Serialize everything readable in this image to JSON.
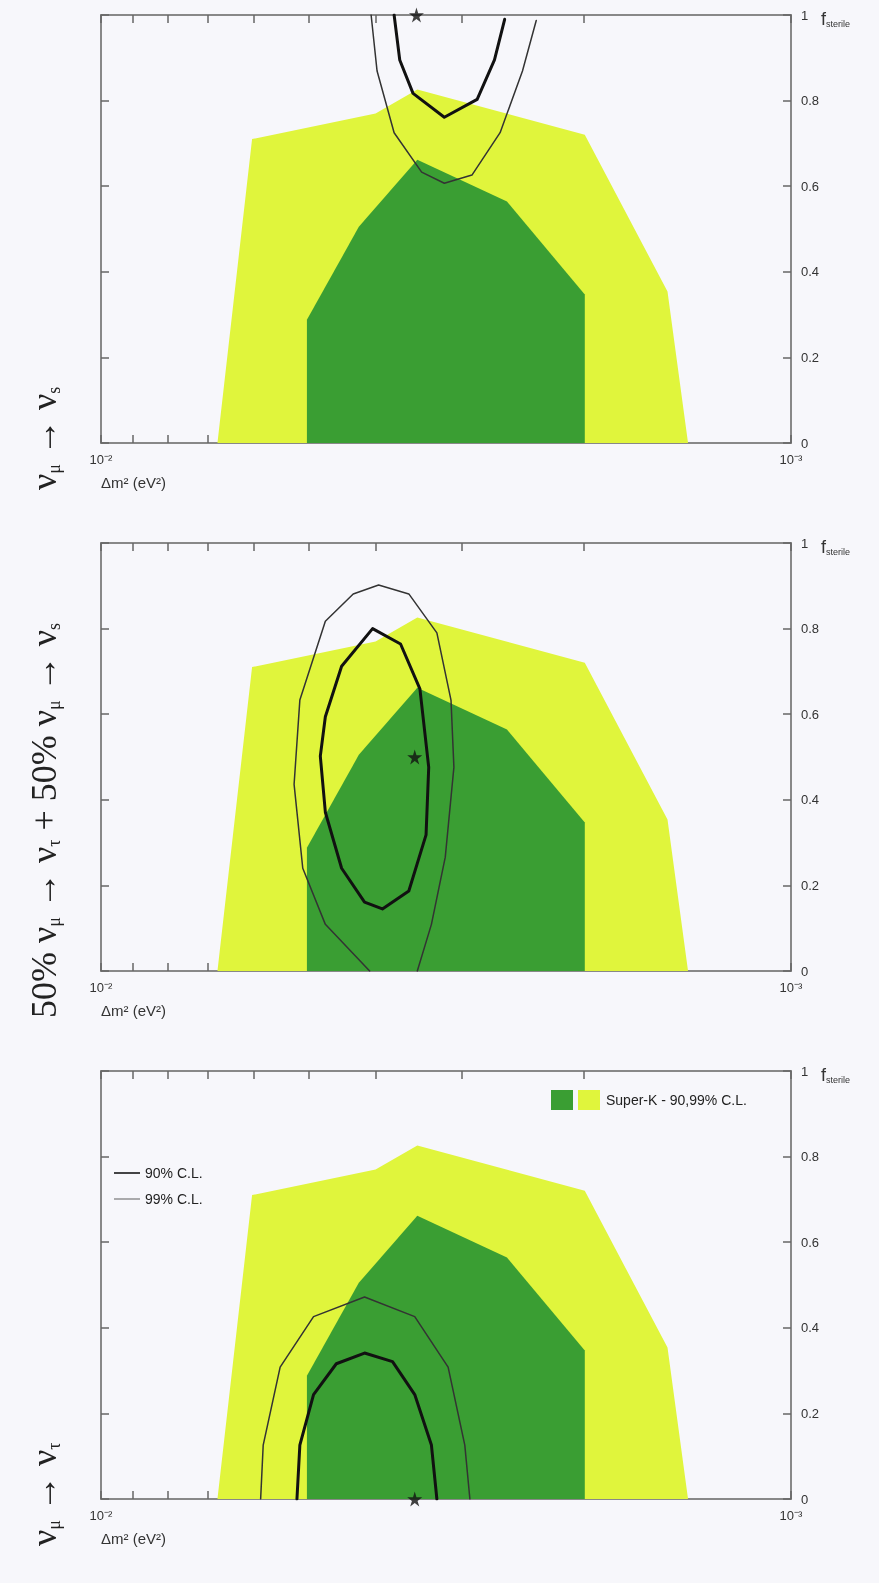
{
  "chart_data": [
    {
      "type": "line",
      "title": "ν$_{μ}$ → ν$_{τ}$",
      "xlabel": "Δm² (eV²)",
      "ylabel": "f$_{sterile}$",
      "xlim": [
        0.01,
        0.001
      ],
      "xticks": [
        {
          "value": 0.01,
          "label": "10⁻²"
        },
        {
          "value": 0.009,
          "label": null
        },
        {
          "value": 0.008,
          "label": null
        },
        {
          "value": 0.007,
          "label": null
        },
        {
          "value": 0.006,
          "label": null
        },
        {
          "value": 0.005,
          "label": null
        },
        {
          "value": 0.004,
          "label": null
        },
        {
          "value": 0.003,
          "label": null
        },
        {
          "value": 0.002,
          "label": null
        },
        {
          "value": 0.001,
          "label": "10⁻³"
        }
      ],
      "ylim": [
        0,
        1
      ],
      "yticks": [
        0,
        0.2,
        0.4,
        0.6,
        0.8,
        1
      ],
      "log": "x",
      "grid": false,
      "legend": "top left",
      "marker": "none",
      "series": [
        {
          "type": "area",
          "name": "Super-K - 90,99% C.L.",
          "color": "#e0f53c",
          "x": [
            0.00678,
            0.00604,
            0.004,
            0.00348,
            0.00199,
            0.00151,
            0.00141
          ],
          "values": [
            0,
            0.71,
            0.77,
            0.826,
            0.72,
            0.354,
            0
          ]
        },
        {
          "type": "area",
          "color": "#3a9e33",
          "x": [
            0.00503,
            0.00503,
            0.00423,
            0.00348,
            0.00258,
            0.00199,
            0.00199
          ],
          "values": [
            0.035,
            0.288,
            0.505,
            0.662,
            0.564,
            0.347,
            0
          ]
        },
        {
          "name": "90% C.L.",
          "color": "#111111",
          "line_style": "solid",
          "x": [
            0.0052,
            0.00515,
            0.00492,
            0.00456,
            0.00415,
            0.00378,
            0.00351,
            0.00332,
            0.00326
          ],
          "values": [
            0,
            0.126,
            0.244,
            0.316,
            0.341,
            0.321,
            0.244,
            0.126,
            0
          ]
        },
        {
          "name": "99% C.L.",
          "color": "#333333",
          "line_style": "solid",
          "x": [
            0.00587,
            0.00582,
            0.0055,
            0.00492,
            0.00415,
            0.00351,
            0.00314,
            0.00297,
            0.00292
          ],
          "values": [
            0,
            0.126,
            0.308,
            0.426,
            0.472,
            0.426,
            0.308,
            0.126,
            0
          ]
        },
        {
          "type": "scatter",
          "color": "#111111",
          "marker": "star",
          "x": [
            0.00351
          ],
          "values": [
            0
          ]
        }
      ]
    },
    {
      "type": "line",
      "title": "50% ν$_{μ}$ → ν$_{τ}$ + 50% ν$_{μ}$ → ν$_{s}$",
      "xlabel": "Δm² (eV²)",
      "ylabel": "f$_{sterile}$",
      "xlim": [
        0.01,
        0.001
      ],
      "xticks": [
        {
          "value": 0.01,
          "label": "10⁻²"
        },
        {
          "value": 0.009,
          "label": null
        },
        {
          "value": 0.008,
          "label": null
        },
        {
          "value": 0.007,
          "label": null
        },
        {
          "value": 0.006,
          "label": null
        },
        {
          "value": 0.005,
          "label": null
        },
        {
          "value": 0.004,
          "label": null
        },
        {
          "value": 0.003,
          "label": null
        },
        {
          "value": 0.002,
          "label": null
        },
        {
          "value": 0.001,
          "label": "10⁻³"
        }
      ],
      "ylim": [
        0,
        1
      ],
      "yticks": [
        0,
        0.2,
        0.4,
        0.6,
        0.8,
        1
      ],
      "log": "x",
      "grid": false,
      "marker": "none",
      "series": [
        {
          "type": "area",
          "color": "#e0f53c",
          "x": [
            0.00678,
            0.00604,
            0.004,
            0.00348,
            0.00199,
            0.00151,
            0.00141
          ],
          "values": [
            0,
            0.71,
            0.77,
            0.826,
            0.72,
            0.354,
            0
          ]
        },
        {
          "type": "area",
          "color": "#3a9e33",
          "x": [
            0.00503,
            0.00503,
            0.00423,
            0.00348,
            0.00258,
            0.00199,
            0.00199
          ],
          "values": [
            0.035,
            0.288,
            0.505,
            0.662,
            0.564,
            0.347,
            0
          ]
        },
        {
          "color": "#111111",
          "line_style": "solid",
          "x": [
            0.00481,
            0.00473,
            0.00448,
            0.00404,
            0.00368,
            0.00345,
            0.00335,
            null,
            0.00481,
            0.00473,
            0.00448,
            0.00415,
            0.00391,
            0.00358,
            0.00338,
            0.00335
          ],
          "values": [
            0.502,
            0.594,
            0.712,
            0.8,
            0.764,
            0.659,
            0.476,
            null,
            0.502,
            0.371,
            0.24,
            0.161,
            0.145,
            0.187,
            0.318,
            0.476
          ]
        },
        {
          "color": "#333333",
          "line_style": "solid",
          "x": [
            0.00525,
            0.0051,
            0.00473,
            0.00408,
            null,
            0.00525,
            0.00515,
            0.00473,
            0.00431,
            0.00396,
            0.00358,
            0.00326,
            0.00311,
            0.00308,
            null,
            0.00308,
            0.00317,
            0.00332,
            0.00348
          ],
          "values": [
            0.436,
            0.24,
            0.109,
            0,
            null,
            0.436,
            0.633,
            0.817,
            0.881,
            0.902,
            0.881,
            0.79,
            0.633,
            0.476,
            null,
            0.476,
            0.266,
            0.109,
            0
          ]
        },
        {
          "type": "scatter",
          "color": "#111111",
          "marker": "star",
          "x": [
            0.00351
          ],
          "values": [
            0.5
          ]
        }
      ]
    },
    {
      "type": "line",
      "title": "ν$_{μ}$ → ν$_{s}$",
      "xlabel": "Δm² (eV²)",
      "ylabel": "f$_{sterile}$",
      "xlim": [
        0.01,
        0.001
      ],
      "xticks": [
        {
          "value": 0.01,
          "label": "10⁻²"
        },
        {
          "value": 0.009,
          "label": null
        },
        {
          "value": 0.008,
          "label": null
        },
        {
          "value": 0.007,
          "label": null
        },
        {
          "value": 0.006,
          "label": null
        },
        {
          "value": 0.005,
          "label": null
        },
        {
          "value": 0.004,
          "label": null
        },
        {
          "value": 0.003,
          "label": null
        },
        {
          "value": 0.002,
          "label": null
        },
        {
          "value": 0.001,
          "label": "10⁻³"
        }
      ],
      "ylim": [
        0,
        1
      ],
      "yticks": [
        0,
        0.2,
        0.4,
        0.6,
        0.8,
        1
      ],
      "log": "x",
      "grid": false,
      "marker": "none",
      "series": [
        {
          "type": "area",
          "color": "#e0f53c",
          "x": [
            0.00678,
            0.00604,
            0.004,
            0.00348,
            0.00199,
            0.00151,
            0.00141
          ],
          "values": [
            0,
            0.71,
            0.77,
            0.826,
            0.72,
            0.354,
            0
          ]
        },
        {
          "type": "area",
          "color": "#3a9e33",
          "x": [
            0.00503,
            0.00503,
            0.00423,
            0.00348,
            0.00258,
            0.00199,
            0.00199
          ],
          "values": [
            0.035,
            0.288,
            0.505,
            0.662,
            0.564,
            0.347,
            0
          ]
        },
        {
          "color": "#111111",
          "line_style": "solid",
          "x": [
            0.00376,
            0.00369,
            0.00353,
            0.00318,
            0.00285,
            0.00269,
            0.0026
          ],
          "values": [
            1,
            0.895,
            0.817,
            0.761,
            0.803,
            0.895,
            0.99
          ]
        },
        {
          "color": "#333333",
          "line_style": "solid",
          "x": [
            0.00406,
            0.00398,
            0.00376,
            0.00343,
            0.00318,
            0.0029,
            0.00264,
            0.00245,
            0.00234
          ],
          "values": [
            1,
            0.869,
            0.725,
            0.633,
            0.607,
            0.626,
            0.725,
            0.869,
            0.987
          ]
        },
        {
          "type": "scatter",
          "color": "#111111",
          "marker": "star",
          "x": [
            0.00349
          ],
          "values": [
            1
          ]
        }
      ]
    }
  ]
}
